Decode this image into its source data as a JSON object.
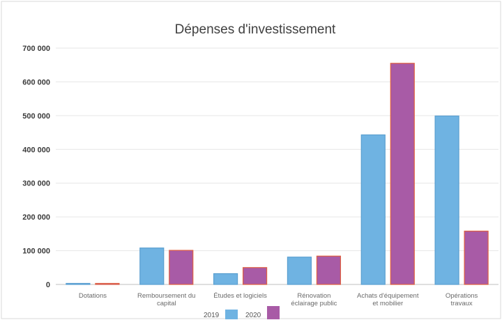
{
  "chart_data": {
    "type": "bar",
    "title": "Dépenses d'investissement",
    "xlabel": "",
    "ylabel": "",
    "ylim": [
      0,
      700000
    ],
    "yticks": [
      0,
      100000,
      200000,
      300000,
      400000,
      500000,
      600000,
      700000
    ],
    "ytick_labels": [
      "0",
      "100 000",
      "200 000",
      "300 000",
      "400 000",
      "500 000",
      "600 000",
      "700 000"
    ],
    "grid": true,
    "legend_position": "bottom",
    "categories": [
      [
        "Dotations"
      ],
      [
        "Remboursement du",
        "capital"
      ],
      [
        "Études et logiciels"
      ],
      [
        "Rénovation",
        "éclairage public"
      ],
      [
        "Achats d'équipement",
        "et mobilier"
      ],
      [
        "Opérations",
        "travaux"
      ]
    ],
    "series": [
      {
        "name": "2019",
        "color": "#6fb3e2",
        "stroke": "#5a9fd0",
        "values": [
          0,
          108000,
          32000,
          81000,
          443000,
          499000
        ]
      },
      {
        "name": "2020",
        "color": "#a85ba6",
        "stroke": "#e06040",
        "values": [
          3000,
          101000,
          50000,
          84000,
          655000,
          158000
        ]
      }
    ]
  }
}
